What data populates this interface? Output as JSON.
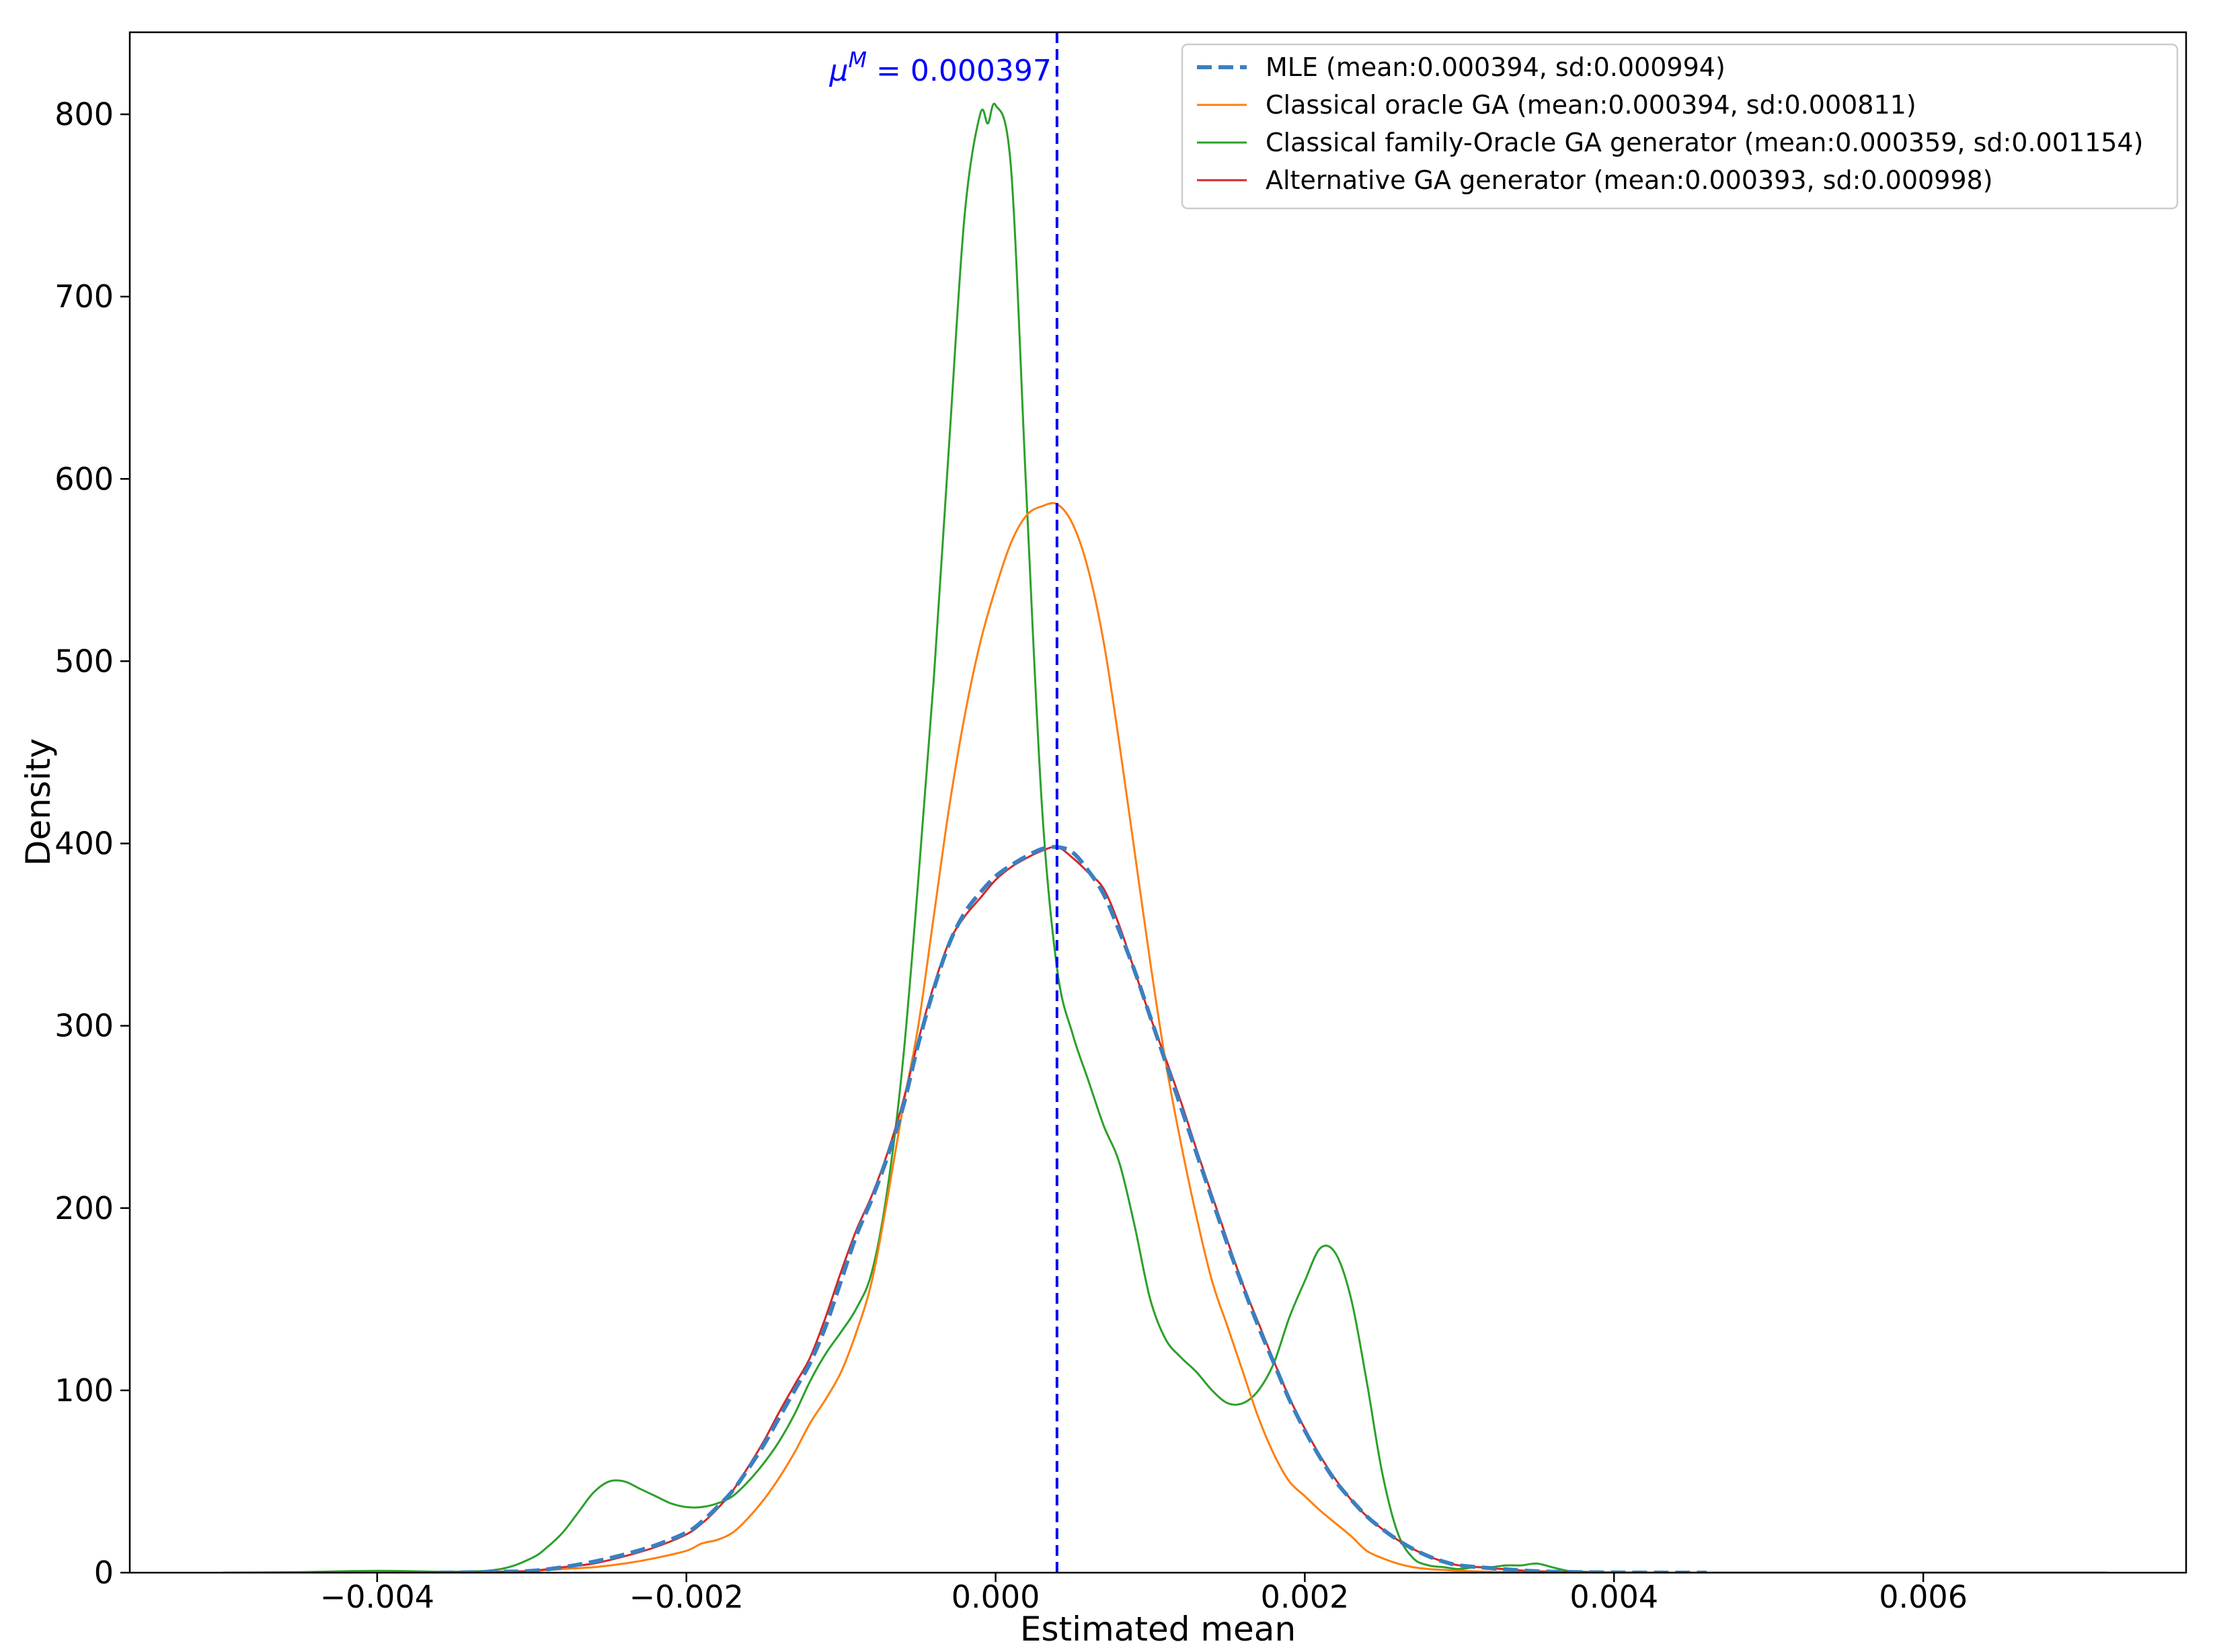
{
  "chart_data": {
    "type": "line",
    "title": "",
    "xlabel": "Estimated mean",
    "ylabel": "Density",
    "xlim": [
      -0.0056,
      0.0077
    ],
    "ylim": [
      0,
      845
    ],
    "grid": false,
    "legend_placement": "top-right",
    "x_ticks": [
      {
        "value": -0.004,
        "label": "−0.004"
      },
      {
        "value": -0.002,
        "label": "−0.002"
      },
      {
        "value": 0.0,
        "label": "0.000"
      },
      {
        "value": 0.002,
        "label": "0.002"
      },
      {
        "value": 0.004,
        "label": "0.004"
      },
      {
        "value": 0.006,
        "label": "0.006"
      }
    ],
    "y_ticks": [
      {
        "value": 0,
        "label": "0"
      },
      {
        "value": 100,
        "label": "100"
      },
      {
        "value": 200,
        "label": "200"
      },
      {
        "value": 300,
        "label": "300"
      },
      {
        "value": 400,
        "label": "400"
      },
      {
        "value": 500,
        "label": "500"
      },
      {
        "value": 600,
        "label": "600"
      },
      {
        "value": 700,
        "label": "700"
      },
      {
        "value": 800,
        "label": "800"
      }
    ],
    "annotations": [
      {
        "type": "vline",
        "x": 0.000397,
        "color": "#0000ff",
        "style": "dashed",
        "label": "μ^M = 0.000397"
      }
    ],
    "series": [
      {
        "name": "MLE (mean:0.000394, sd:0.000994)",
        "color": "#3a80c0",
        "style": "dashed",
        "x": [
          -0.0036,
          -0.0032,
          -0.003,
          -0.0028,
          -0.0026,
          -0.0024,
          -0.0022,
          -0.002,
          -0.0019,
          -0.0018,
          -0.0017,
          -0.0016,
          -0.0015,
          -0.0014,
          -0.0013,
          -0.0012,
          -0.0011,
          -0.001,
          -0.0009,
          -0.0008,
          -0.0007,
          -0.0006,
          -0.0005,
          -0.0004,
          -0.0003,
          -0.0002,
          -0.0001,
          0.0,
          0.0001,
          0.0002,
          0.0003,
          0.0004,
          0.0005,
          0.0006,
          0.0007,
          0.0008,
          0.0009,
          0.001,
          0.0011,
          0.0012,
          0.0013,
          0.0014,
          0.0015,
          0.0016,
          0.0017,
          0.0018,
          0.0019,
          0.002,
          0.0021,
          0.0022,
          0.0023,
          0.0024,
          0.0025,
          0.0026,
          0.0027,
          0.0028,
          0.0029,
          0.003,
          0.0032,
          0.0034,
          0.0036,
          0.0038,
          0.004,
          0.0042,
          0.0044,
          0.0046
        ],
        "y": [
          0,
          0.5,
          1,
          3,
          6,
          10,
          15,
          22,
          28,
          36,
          45,
          57,
          70,
          85,
          100,
          115,
          135,
          160,
          185,
          205,
          228,
          255,
          290,
          320,
          345,
          362,
          373,
          382,
          388,
          393,
          397,
          398,
          395,
          385,
          372,
          352,
          330,
          305,
          280,
          255,
          230,
          205,
          180,
          157,
          135,
          115,
          95,
          78,
          63,
          50,
          40,
          31,
          24,
          18,
          13,
          9,
          6,
          4,
          2.5,
          1.2,
          0.5,
          0.3,
          0.1,
          0.05,
          0,
          0
        ]
      },
      {
        "name": "Classical oracle GA (mean:0.000394, sd:0.000811)",
        "color": "#ff7f0e",
        "style": "solid",
        "x": [
          -0.0036,
          -0.0032,
          -0.003,
          -0.0028,
          -0.0026,
          -0.0024,
          -0.0022,
          -0.002,
          -0.0019,
          -0.0018,
          -0.0017,
          -0.0016,
          -0.0015,
          -0.0014,
          -0.0013,
          -0.0012,
          -0.0011,
          -0.001,
          -0.0009,
          -0.0008,
          -0.0007,
          -0.0006,
          -0.0005,
          -0.0004,
          -0.0003,
          -0.0002,
          -0.0001,
          0.0,
          0.0001,
          0.0002,
          0.0003,
          0.0004,
          0.0005,
          0.0006,
          0.0007,
          0.0008,
          0.0009,
          0.001,
          0.0011,
          0.0012,
          0.0013,
          0.0014,
          0.0015,
          0.0016,
          0.0017,
          0.0018,
          0.0019,
          0.002,
          0.0021,
          0.0022,
          0.0023,
          0.0024,
          0.0025,
          0.0026,
          0.0027,
          0.0028,
          0.0029,
          0.003,
          0.0032,
          0.0034,
          0.0036,
          0.0038,
          0.004,
          0.0042,
          0.0044,
          0.0046
        ],
        "y": [
          0,
          0.3,
          1,
          2,
          3,
          5,
          8,
          12,
          16,
          18,
          22,
          30,
          40,
          52,
          66,
          82,
          95,
          110,
          132,
          160,
          205,
          255,
          300,
          360,
          420,
          470,
          510,
          540,
          565,
          580,
          585,
          586,
          575,
          550,
          510,
          455,
          395,
          335,
          280,
          235,
          195,
          160,
          135,
          110,
          85,
          65,
          50,
          42,
          34,
          27,
          20,
          12,
          8,
          5,
          3,
          2,
          1.5,
          1,
          0.5,
          0.3,
          0.1,
          0.05,
          0,
          0,
          0,
          0
        ]
      },
      {
        "name": "Classical family-Oracle GA generator (mean:0.000359, sd:0.001154)",
        "color": "#2ca02c",
        "style": "solid",
        "x": [
          -0.005,
          -0.0045,
          -0.004,
          -0.0035,
          -0.0032,
          -0.003,
          -0.0029,
          -0.0028,
          -0.0027,
          -0.0026,
          -0.0025,
          -0.0024,
          -0.0023,
          -0.0022,
          -0.0021,
          -0.002,
          -0.0019,
          -0.0018,
          -0.0017,
          -0.0016,
          -0.0015,
          -0.0014,
          -0.0013,
          -0.0012,
          -0.0011,
          -0.001,
          -0.0009,
          -0.0008,
          -0.0007,
          -0.0006,
          -0.0005,
          -0.0004,
          -0.0003,
          -0.0002,
          -0.0001,
          -5e-05,
          0.0,
          0.0001,
          0.0002,
          0.0003,
          0.0004,
          0.0005,
          0.0006,
          0.0007,
          0.0008,
          0.0009,
          0.001,
          0.0011,
          0.0012,
          0.0013,
          0.0014,
          0.0015,
          0.0016,
          0.0017,
          0.0018,
          0.0019,
          0.002,
          0.0021,
          0.0022,
          0.0023,
          0.0024,
          0.0025,
          0.0026,
          0.0027,
          0.0028,
          0.0029,
          0.003,
          0.0031,
          0.0032,
          0.0033,
          0.0034,
          0.0035,
          0.0036,
          0.0037,
          0.0038,
          0.0039,
          0.004,
          0.0041,
          0.0042,
          0.0043,
          0.0044,
          0.0045,
          0.0046,
          0.0047,
          0.0048,
          0.005,
          0.0055,
          0.006,
          0.0065,
          0.007,
          0.0072
        ],
        "y": [
          0,
          0.3,
          1,
          0.5,
          2,
          8,
          14,
          22,
          33,
          44,
          50,
          50,
          46,
          42,
          38,
          36,
          36,
          38,
          42,
          50,
          60,
          72,
          87,
          105,
          120,
          132,
          145,
          165,
          210,
          280,
          380,
          490,
          620,
          745,
          800,
          795,
          805,
          770,
          590,
          420,
          330,
          295,
          270,
          245,
          225,
          190,
          150,
          128,
          118,
          110,
          100,
          93,
          93,
          100,
          115,
          140,
          160,
          178,
          175,
          150,
          105,
          55,
          22,
          8,
          4,
          3,
          2,
          3,
          3,
          4,
          4,
          5,
          3,
          1,
          0.5,
          0.3,
          0.1,
          0,
          0,
          0,
          0,
          0,
          0,
          0,
          0,
          0,
          0,
          0,
          0,
          0,
          0
        ]
      },
      {
        "name": "Alternative GA generator (mean:0.000393, sd:0.000998)",
        "color": "#d62728",
        "style": "solid",
        "x": [
          -0.0036,
          -0.0032,
          -0.003,
          -0.0028,
          -0.0026,
          -0.0024,
          -0.0022,
          -0.002,
          -0.0019,
          -0.0018,
          -0.0017,
          -0.0016,
          -0.0015,
          -0.0014,
          -0.0013,
          -0.0012,
          -0.0011,
          -0.001,
          -0.0009,
          -0.0008,
          -0.0007,
          -0.0006,
          -0.0005,
          -0.0004,
          -0.0003,
          -0.0002,
          -0.0001,
          0.0,
          0.0001,
          0.0002,
          0.0003,
          0.0004,
          0.0005,
          0.0006,
          0.0007,
          0.0008,
          0.0009,
          0.001,
          0.0011,
          0.0012,
          0.0013,
          0.0014,
          0.0015,
          0.0016,
          0.0017,
          0.0018,
          0.0019,
          0.002,
          0.0021,
          0.0022,
          0.0023,
          0.0024,
          0.0025,
          0.0026,
          0.0027,
          0.0028,
          0.0029,
          0.003,
          0.0032,
          0.0034,
          0.0036,
          0.0038,
          0.004,
          0.0042,
          0.0044,
          0.0046
        ],
        "y": [
          0,
          0.5,
          1,
          3,
          5,
          9,
          14,
          21,
          27,
          35,
          45,
          58,
          72,
          88,
          103,
          118,
          140,
          165,
          188,
          207,
          230,
          258,
          292,
          322,
          346,
          360,
          370,
          380,
          387,
          392,
          396,
          398,
          392,
          384,
          375,
          355,
          330,
          305,
          282,
          258,
          232,
          207,
          182,
          158,
          137,
          116,
          96,
          79,
          64,
          51,
          40,
          31,
          24,
          18,
          13,
          9,
          6,
          4,
          2.5,
          1.2,
          0.5,
          0.3,
          0.1,
          0.05,
          0,
          0
        ]
      }
    ]
  }
}
